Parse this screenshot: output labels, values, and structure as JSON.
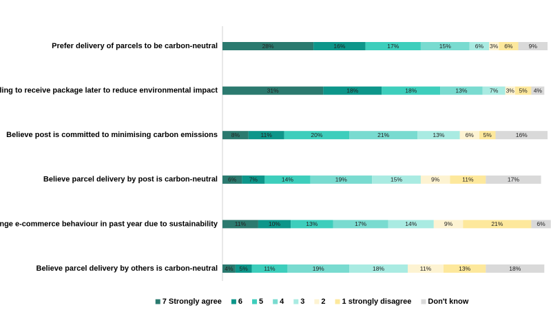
{
  "chart_data": {
    "type": "bar",
    "orientation": "horizontal",
    "stacked": true,
    "legend": "bottom",
    "categories": [
      "Prefer delivery of parcels to be carbon-neutral",
      "Willing to receive package later to reduce environmental impact",
      "Believe post is committed to minimising carbon emissions",
      "Believe parcel delivery by post is carbon-neutral",
      "Change e-commerce behaviour in past year due to sustainability",
      "Believe parcel delivery by others is carbon-neutral"
    ],
    "series": [
      {
        "name": "7 Strongly agree",
        "color": "#2b7a6f",
        "values": [
          28,
          31,
          8,
          6,
          11,
          4
        ],
        "value_labels": [
          "28%",
          "31%",
          "8%",
          "6%",
          "11%",
          "4%"
        ]
      },
      {
        "name": "6",
        "color": "#0d968a",
        "values": [
          16,
          18,
          11,
          7,
          10,
          5
        ],
        "value_labels": [
          "16%",
          "18%",
          "11%",
          "7%",
          "10%",
          "5%"
        ]
      },
      {
        "name": "5",
        "color": "#3dcebc",
        "values": [
          17,
          18,
          20,
          14,
          13,
          11
        ],
        "value_labels": [
          "17%",
          "18%",
          "20%",
          "14%",
          "13%",
          "11%"
        ]
      },
      {
        "name": "4",
        "color": "#79dbd0",
        "values": [
          15,
          13,
          21,
          19,
          17,
          19
        ],
        "value_labels": [
          "15%",
          "13%",
          "21%",
          "19%",
          "17%",
          "19%"
        ]
      },
      {
        "name": "3",
        "color": "#a9ebe2",
        "values": [
          6,
          7,
          13,
          15,
          14,
          18
        ],
        "value_labels": [
          "6%",
          "7%",
          "13%",
          "15%",
          "14%",
          "18%"
        ]
      },
      {
        "name": "2",
        "color": "#fdf3d2",
        "values": [
          3,
          3,
          6,
          9,
          9,
          11
        ],
        "value_labels": [
          "3%",
          "3%",
          "6%",
          "9%",
          "9%",
          "11%"
        ]
      },
      {
        "name": "1 strongly disagree",
        "color": "#fde89c",
        "values": [
          6,
          5,
          5,
          11,
          21,
          13
        ],
        "value_labels": [
          "6%",
          "5%",
          "5%",
          "11%",
          "21%",
          "13%"
        ]
      },
      {
        "name": "Don't know",
        "color": "#d9d9d9",
        "values": [
          9,
          4,
          16,
          17,
          6,
          18
        ],
        "value_labels": [
          "9%",
          "4%",
          "16%",
          "17%",
          "6%",
          "18%"
        ]
      }
    ]
  }
}
